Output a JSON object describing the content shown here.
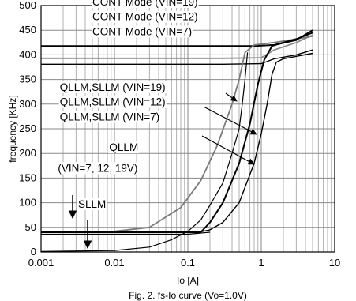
{
  "chart_data": {
    "type": "line",
    "xscale": "log",
    "xlim": [
      0.001,
      10
    ],
    "ylim": [
      0,
      500
    ],
    "grid": true,
    "xlabel": "Io [A]",
    "ylabel": "frequency [KHz]",
    "xticks": [
      "0.001",
      "0.01",
      "0.1",
      "1",
      "10"
    ],
    "yticks": [
      "0",
      "50",
      "100",
      "150",
      "200",
      "250",
      "300",
      "350",
      "400",
      "450",
      "500"
    ],
    "caption": "Fig. 2. fs-Io curve (Vo=1.0V)",
    "series": [
      {
        "name": "CONT Mode (VIN=19)",
        "color": "#000000",
        "width": 2.0,
        "points": [
          [
            0.001,
            418
          ],
          [
            0.3,
            418
          ],
          [
            0.8,
            418
          ],
          [
            1.5,
            420
          ],
          [
            3,
            430
          ],
          [
            5,
            450
          ]
        ]
      },
      {
        "name": "CONT Mode (VIN=12)",
        "color": "#8c8c8c",
        "width": 1.8,
        "points": [
          [
            0.001,
            393
          ],
          [
            0.3,
            393
          ],
          [
            1.0,
            394
          ],
          [
            1.5,
            410
          ],
          [
            3,
            425
          ],
          [
            5,
            440
          ]
        ]
      },
      {
        "name": "CONT Mode (VIN=7)",
        "color": "#000000",
        "width": 1.4,
        "points": [
          [
            0.001,
            381
          ],
          [
            0.3,
            381
          ],
          [
            1.0,
            382
          ],
          [
            1.5,
            392
          ],
          [
            3,
            400
          ],
          [
            5,
            410
          ]
        ]
      },
      {
        "name": "QLLM,SLLM (VIN=19)",
        "color": "#7a7a7a",
        "width": 1.8,
        "points": [
          [
            0.001,
            40
          ],
          [
            0.01,
            42
          ],
          [
            0.03,
            50
          ],
          [
            0.08,
            90
          ],
          [
            0.15,
            145
          ],
          [
            0.25,
            215
          ],
          [
            0.4,
            300
          ],
          [
            0.5,
            350
          ],
          [
            0.6,
            405
          ],
          [
            0.8,
            420
          ],
          [
            1.5,
            425
          ],
          [
            3,
            432
          ],
          [
            5,
            438
          ]
        ]
      },
      {
        "name": "QLLM,SLLM (VIN=12)",
        "color": "#000000",
        "width": 2.0,
        "points": [
          [
            0.001,
            40
          ],
          [
            0.05,
            40
          ],
          [
            0.1,
            40
          ],
          [
            0.15,
            40
          ],
          [
            0.2,
            60
          ],
          [
            0.3,
            100
          ],
          [
            0.5,
            180
          ],
          [
            0.7,
            260
          ],
          [
            0.9,
            340
          ],
          [
            1.1,
            390
          ],
          [
            1.4,
            418
          ],
          [
            2,
            425
          ],
          [
            3,
            432
          ],
          [
            5,
            445
          ]
        ]
      },
      {
        "name": "QLLM,SLLM (VIN=7)",
        "color": "#000000",
        "width": 1.4,
        "points": [
          [
            0.001,
            40
          ],
          [
            0.05,
            40
          ],
          [
            0.15,
            41
          ],
          [
            0.2,
            45
          ],
          [
            0.3,
            60
          ],
          [
            0.5,
            100
          ],
          [
            0.8,
            180
          ],
          [
            1.0,
            240
          ],
          [
            1.2,
            300
          ],
          [
            1.4,
            360
          ],
          [
            1.6,
            385
          ],
          [
            2,
            392
          ],
          [
            3,
            397
          ],
          [
            5,
            403
          ]
        ]
      },
      {
        "name": "QLLM (VIN=7, 12, 19V)",
        "color": "#000000",
        "width": 1.2,
        "points": [
          [
            0.001,
            1
          ],
          [
            0.01,
            3
          ],
          [
            0.03,
            10
          ],
          [
            0.06,
            25
          ],
          [
            0.1,
            42
          ],
          [
            0.15,
            65
          ],
          [
            0.2,
            95
          ],
          [
            0.3,
            140
          ],
          [
            0.4,
            200
          ],
          [
            0.5,
            250
          ],
          [
            0.55,
            300
          ],
          [
            0.6,
            350
          ],
          [
            0.65,
            405
          ]
        ]
      },
      {
        "name": "SLLM",
        "color": "#000000",
        "width": 1.2,
        "points": [
          [
            0.001,
            36
          ],
          [
            0.1,
            36
          ],
          [
            0.2,
            40
          ]
        ]
      }
    ],
    "annotations": [
      {
        "text": "CONT Mode (VIN=19)",
        "x": 0.005,
        "y": 500
      },
      {
        "text": "CONT Mode (VIN=12)",
        "x": 0.005,
        "y": 470
      },
      {
        "text": "CONT Mode (VIN=7)",
        "x": 0.005,
        "y": 440
      },
      {
        "text": "QLLM,SLLM (VIN=19)",
        "x": 0.0018,
        "y": 327
      },
      {
        "text": "QLLM,SLLM (VIN=12)",
        "x": 0.0018,
        "y": 297
      },
      {
        "text": "QLLM,SLLM (VIN=7)",
        "x": 0.0018,
        "y": 267
      },
      {
        "text": "QLLM",
        "x": 0.0085,
        "y": 205
      },
      {
        "text": "(VIN=7, 12, 19V)",
        "x": 0.0017,
        "y": 163
      },
      {
        "text": "SLLM",
        "x": 0.0032,
        "y": 90
      }
    ]
  }
}
